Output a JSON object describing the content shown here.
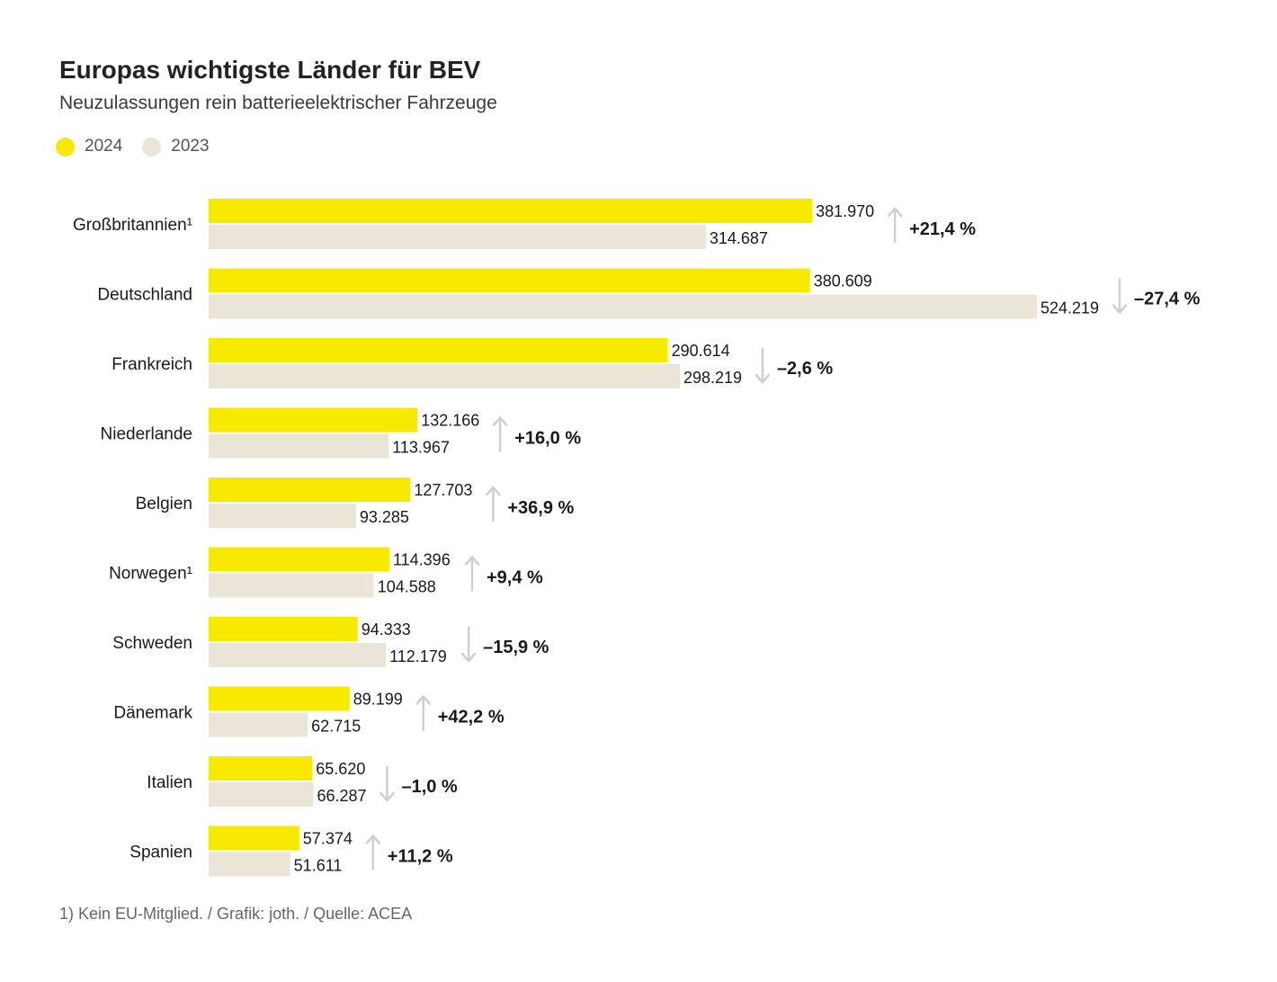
{
  "title": "Europas wichtigste Länder für BEV",
  "subtitle": "Neuzulassungen rein batterieelektrischer Fahrzeuge",
  "legend": [
    {
      "label": "2024",
      "color": "#f7ea00"
    },
    {
      "label": "2023",
      "color": "#ebe5d7"
    }
  ],
  "footnote": "1) Kein EU-Mitglied. / Grafik: joth. / Quelle: ACEA",
  "colors": {
    "bar_2024": "#f7ea00",
    "bar_2023": "#ebe5d7",
    "arrow": "#cfcfcf",
    "text": "#1a1a1a"
  },
  "chart_data": {
    "type": "bar",
    "orientation": "horizontal",
    "title": "Europas wichtigste Länder für BEV",
    "subtitle": "Neuzulassungen rein batterieelektrischer Fahrzeuge",
    "categories": [
      "Großbritannien¹",
      "Deutschland",
      "Frankreich",
      "Niederlande",
      "Belgien",
      "Norwegen¹",
      "Schweden",
      "Dänemark",
      "Italien",
      "Spanien"
    ],
    "series": [
      {
        "name": "2024",
        "values": [
          381970,
          380609,
          290614,
          132166,
          127703,
          114396,
          94333,
          89199,
          65620,
          57374
        ],
        "labels": [
          "381.970",
          "380.609",
          "290.614",
          "132.166",
          "127.703",
          "114.396",
          "94.333",
          "89.199",
          "65.620",
          "57.374"
        ]
      },
      {
        "name": "2023",
        "values": [
          314687,
          524219,
          298219,
          113967,
          93285,
          104588,
          112179,
          62715,
          66287,
          51611
        ],
        "labels": [
          "314.687",
          "524.219",
          "298.219",
          "113.967",
          "93.285",
          "104.588",
          "112.179",
          "62.715",
          "66.287",
          "51.611"
        ]
      }
    ],
    "changes": [
      "+21,4 %",
      "–27,4 %",
      "–2,6 %",
      "+16,0 %",
      "+36,9 %",
      "+9,4 %",
      "–15,9 %",
      "+42,2 %",
      "–1,0 %",
      "+11,2 %"
    ],
    "directions": [
      "up",
      "down",
      "down",
      "up",
      "up",
      "up",
      "down",
      "up",
      "down",
      "up"
    ],
    "xlim": [
      0,
      524219
    ],
    "grid": false,
    "legend_position": "top-left"
  }
}
